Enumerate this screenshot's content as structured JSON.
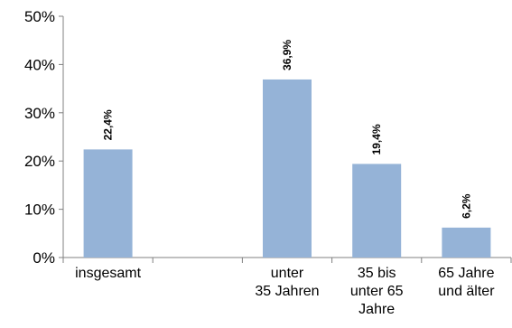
{
  "chart_data": {
    "type": "bar",
    "categories": [
      [
        "insgesamt"
      ],
      [],
      [
        "unter",
        "35 Jahren"
      ],
      [
        "35 bis",
        "unter 65",
        "Jahre"
      ],
      [
        "65 Jahre",
        "und älter"
      ]
    ],
    "values": [
      22.4,
      null,
      36.9,
      19.4,
      6.2
    ],
    "data_labels": [
      "22,4%",
      "",
      "36,9%",
      "19,4%",
      "6,2%"
    ],
    "ylim": [
      0,
      50
    ],
    "yticks": [
      0,
      10,
      20,
      30,
      40,
      50
    ],
    "ytick_labels": [
      "0%",
      "10%",
      "20%",
      "30%",
      "40%",
      "50%"
    ],
    "bar_color": "#95b3d7",
    "axis_color": "#808080",
    "grid": false,
    "legend": false,
    "title": "",
    "xlabel": "",
    "ylabel": ""
  }
}
